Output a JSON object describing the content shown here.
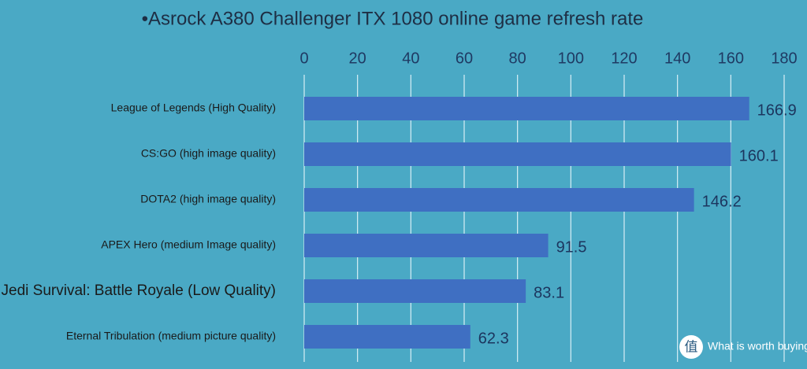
{
  "chart_data": {
    "type": "barh",
    "title": "•Asrock A380 Challenger ITX 1080 online game refresh rate",
    "categories": [
      "League of Legends (High Quality)",
      "CS:GO (high image quality)",
      "DOTA2 (high image quality)",
      "APEX Hero (medium Image quality)",
      "Jedi Survival: Battle Royale (Low Quality)",
      "Eternal Tribulation (medium picture quality)"
    ],
    "values": [
      166.9,
      160.1,
      146.2,
      91.5,
      83.1,
      62.3
    ],
    "color": "#3f6fc2",
    "xlim": [
      0,
      180
    ],
    "xticks": [
      0,
      20,
      40,
      60,
      80,
      100,
      120,
      140,
      160,
      180
    ],
    "grid": true,
    "watermark": {
      "icon": "值",
      "text": "What is worth buying"
    }
  }
}
